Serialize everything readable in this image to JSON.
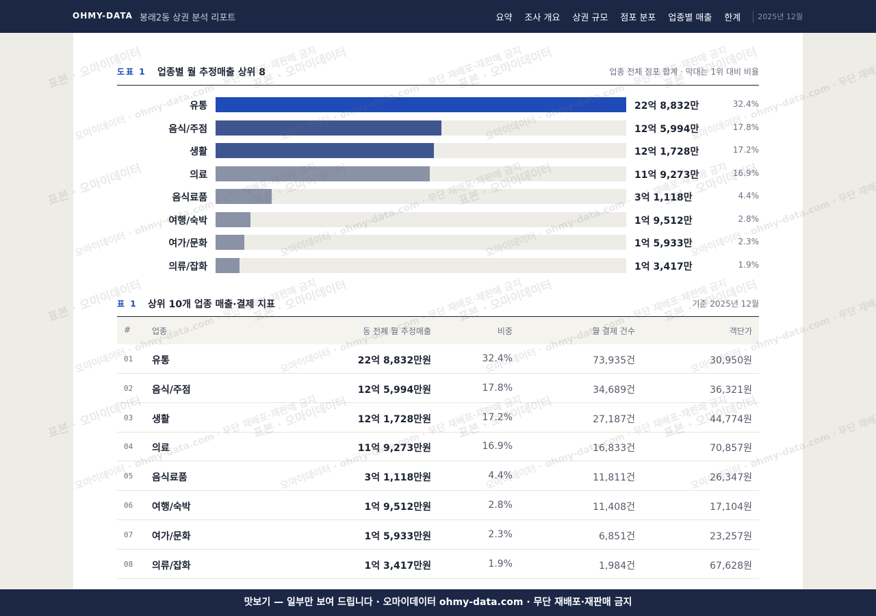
{
  "header": {
    "brand": "OHMY-DATA",
    "subtitle": "봉래2동 상권 분석 리포트",
    "nav": [
      "요약",
      "조사 개요",
      "상권 규모",
      "점포 분포",
      "업종별 매출",
      "한계"
    ],
    "date": "2025년 12월"
  },
  "chart_data": {
    "type": "bar",
    "orientation": "horizontal",
    "label": "도표 1",
    "title": "업종별 월 추정매출 상위 8",
    "note": "업종 전체 점포 합계 · 막대는 1위 대비 비율",
    "categories": [
      "유통",
      "음식/주점",
      "생활",
      "의료",
      "음식료품",
      "여행/숙박",
      "여가/문화",
      "의류/잡화"
    ],
    "values": [
      228832,
      125994,
      121728,
      119273,
      31118,
      19512,
      15933,
      13417
    ],
    "value_labels": [
      "22억 8,832만",
      "12억 5,994만",
      "12억 1,728만",
      "11억 9,273만",
      "3억 1,118만",
      "1억 9,512만",
      "1억 5,933만",
      "1억 3,417만"
    ],
    "shares": [
      32.4,
      17.8,
      17.2,
      16.9,
      4.4,
      2.8,
      2.3,
      1.9
    ],
    "share_labels": [
      "32.4%",
      "17.8%",
      "17.2%",
      "16.9%",
      "4.4%",
      "2.8%",
      "2.3%",
      "1.9%"
    ],
    "colors": [
      "#1f4bb8",
      "#3f5590",
      "#3f5590",
      "#8a92a6",
      "#8a92a6",
      "#8a92a6",
      "#8a92a6",
      "#8a92a6"
    ],
    "track_color": "#eeece6"
  },
  "table": {
    "label": "표 1",
    "title": "상위 10개 업종 매출·결제 지표",
    "note": "기준 2025년 12월",
    "headers": [
      "#",
      "업종",
      "동 전체 월 추정매출",
      "비중",
      "월 결제 건수",
      "객단가"
    ],
    "rows": [
      [
        "01",
        "유통",
        "22억 8,832만원",
        "32.4%",
        "73,935건",
        "30,950원"
      ],
      [
        "02",
        "음식/주점",
        "12억 5,994만원",
        "17.8%",
        "34,689건",
        "36,321원"
      ],
      [
        "03",
        "생활",
        "12억 1,728만원",
        "17.2%",
        "27,187건",
        "44,774원"
      ],
      [
        "04",
        "의료",
        "11억 9,273만원",
        "16.9%",
        "16,833건",
        "70,857원"
      ],
      [
        "05",
        "음식료품",
        "3억 1,118만원",
        "4.4%",
        "11,811건",
        "26,347원"
      ],
      [
        "06",
        "여행/숙박",
        "1억 9,512만원",
        "2.8%",
        "11,408건",
        "17,104원"
      ],
      [
        "07",
        "여가/문화",
        "1억 5,933만원",
        "2.3%",
        "6,851건",
        "23,257원"
      ],
      [
        "08",
        "의류/잡화",
        "1억 3,417만원",
        "1.9%",
        "1,984건",
        "67,628원"
      ]
    ]
  },
  "watermarks": [
    "표본 · 오마이데이터",
    "오마이데이터 · ohmy-data.com · 무단 재배포·재판매 금지"
  ],
  "footer": "맛보기 — 일부만 보여 드립니다 · 오마이데이터 ohmy-data.com · 무단 재배포·재판매 금지"
}
